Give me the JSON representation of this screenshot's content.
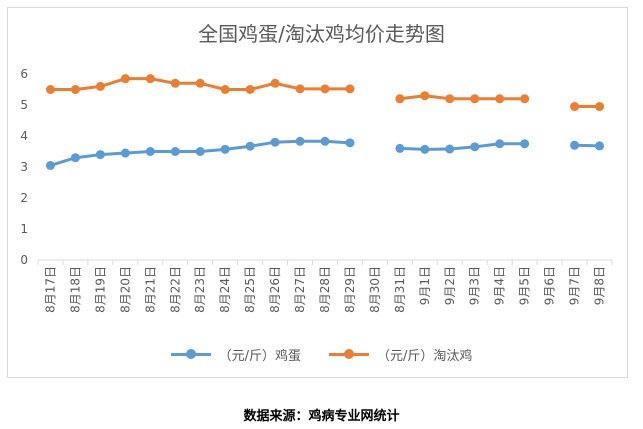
{
  "chart_data": {
    "type": "line",
    "title": "全国鸡蛋/淘汰鸡均价走势图",
    "xlabel": "",
    "ylabel": "",
    "ylim": [
      0,
      6
    ],
    "yticks": [
      0,
      1,
      2,
      3,
      4,
      5,
      6
    ],
    "grid": false,
    "legend_position": "bottom",
    "x": [
      "8月17日",
      "8月18日",
      "8月19日",
      "8月20日",
      "8月21日",
      "8月22日",
      "8月23日",
      "8月24日",
      "8月25日",
      "8月26日",
      "8月27日",
      "8月28日",
      "8月29日",
      "8月30日",
      "8月31日",
      "9月1日",
      "9月2日",
      "9月3日",
      "9月4日",
      "9月5日",
      "9月6日",
      "9月7日",
      "9月8日"
    ],
    "series": [
      {
        "name": "（元/斤）鸡蛋",
        "color": "#5b9bd5",
        "values": [
          3.05,
          3.3,
          3.4,
          3.45,
          3.5,
          3.5,
          3.5,
          3.57,
          3.67,
          3.8,
          3.83,
          3.83,
          3.78,
          null,
          3.6,
          3.57,
          3.58,
          3.65,
          3.75,
          3.75,
          null,
          3.7,
          3.68
        ]
      },
      {
        "name": "（元/斤）淘汰鸡",
        "color": "#ed7d31",
        "values": [
          5.5,
          5.5,
          5.6,
          5.85,
          5.85,
          5.7,
          5.7,
          5.5,
          5.5,
          5.7,
          5.52,
          5.52,
          5.52,
          null,
          5.2,
          5.3,
          5.2,
          5.2,
          5.2,
          5.2,
          null,
          4.95,
          4.95
        ]
      }
    ]
  },
  "source_text": "数据来源：鸡病专业网统计"
}
